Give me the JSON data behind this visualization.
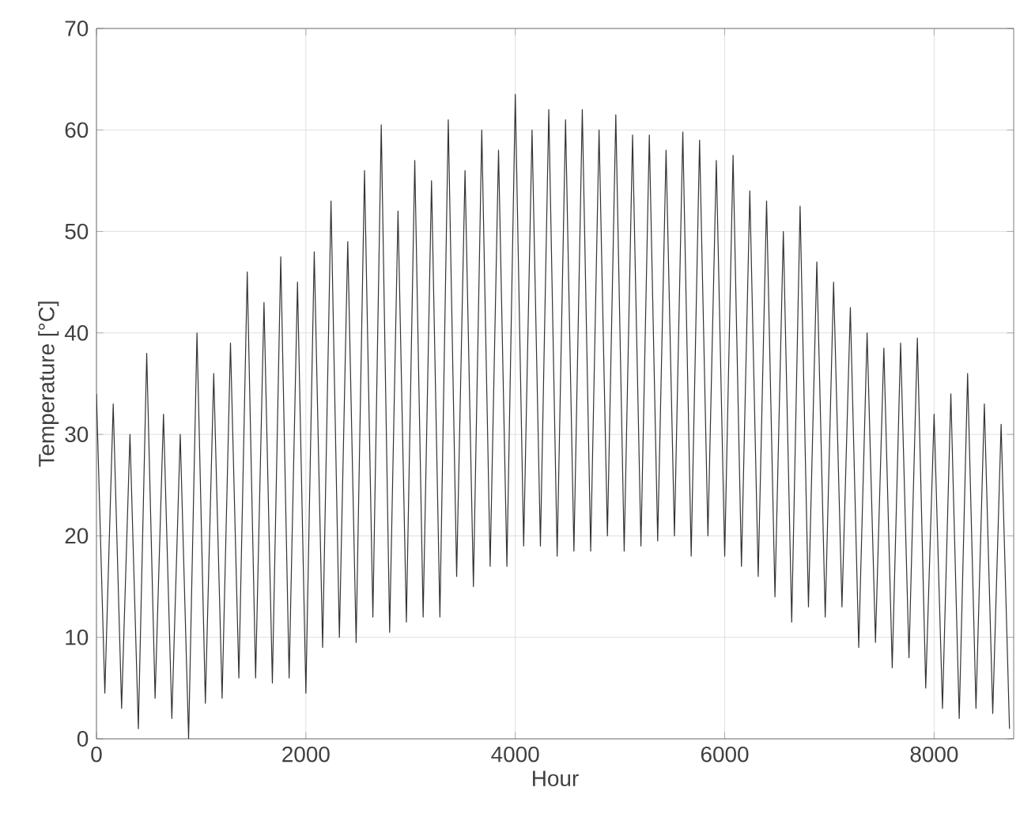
{
  "chart_data": {
    "type": "line",
    "xlabel": "Hour",
    "ylabel": "Temperature [°C]",
    "x": [
      0,
      80,
      160,
      240,
      320,
      400,
      480,
      560,
      640,
      720,
      800,
      880,
      960,
      1040,
      1120,
      1200,
      1280,
      1360,
      1440,
      1520,
      1600,
      1680,
      1760,
      1840,
      1920,
      2000,
      2080,
      2160,
      2240,
      2320,
      2400,
      2480,
      2560,
      2640,
      2720,
      2800,
      2880,
      2960,
      3040,
      3120,
      3200,
      3280,
      3360,
      3440,
      3520,
      3600,
      3680,
      3760,
      3840,
      3920,
      4000,
      4080,
      4160,
      4240,
      4320,
      4400,
      4480,
      4560,
      4640,
      4720,
      4800,
      4880,
      4960,
      5040,
      5120,
      5200,
      5280,
      5360,
      5440,
      5520,
      5600,
      5680,
      5760,
      5840,
      5920,
      6000,
      6080,
      6160,
      6240,
      6320,
      6400,
      6480,
      6560,
      6640,
      6720,
      6800,
      6880,
      6960,
      7040,
      7120,
      7200,
      7280,
      7360,
      7440,
      7520,
      7600,
      7680,
      7760,
      7840,
      7920,
      8000,
      8080,
      8160,
      8240,
      8320,
      8400,
      8480,
      8560,
      8640,
      8720
    ],
    "values": [
      34,
      4.5,
      33,
      3,
      30,
      1,
      38,
      4,
      32,
      2,
      30,
      0,
      40,
      3.5,
      36,
      4,
      39,
      6,
      46,
      6,
      43,
      5.5,
      47.5,
      6,
      45,
      4.5,
      48,
      9,
      53,
      10,
      49,
      9.5,
      56,
      12,
      60.5,
      10.5,
      52,
      11.5,
      57,
      12,
      55,
      12,
      61,
      16,
      56,
      15,
      60,
      17,
      58,
      17,
      63.5,
      19,
      60,
      19,
      62,
      18,
      61,
      18.5,
      62,
      18.5,
      60,
      20,
      61.5,
      18.5,
      59.5,
      19,
      59.5,
      19.5,
      58,
      20,
      59.8,
      18,
      59,
      20,
      57,
      18,
      57.5,
      17,
      54,
      16,
      53,
      14,
      50,
      11.5,
      52.5,
      13,
      47,
      12,
      45,
      13,
      42.5,
      9,
      40,
      9.5,
      38.5,
      7,
      39,
      8,
      39.5,
      5,
      32,
      3,
      34,
      2,
      36,
      3,
      33,
      2.5,
      31,
      1
    ],
    "color": "#333333",
    "line_style": "solid",
    "marker": "none",
    "xlim": [
      0,
      8760
    ],
    "ylim": [
      0,
      70
    ],
    "xticks": [
      0,
      2000,
      4000,
      6000,
      8000
    ],
    "yticks": [
      0,
      10,
      20,
      30,
      40,
      50,
      60,
      70
    ],
    "grid": true
  }
}
